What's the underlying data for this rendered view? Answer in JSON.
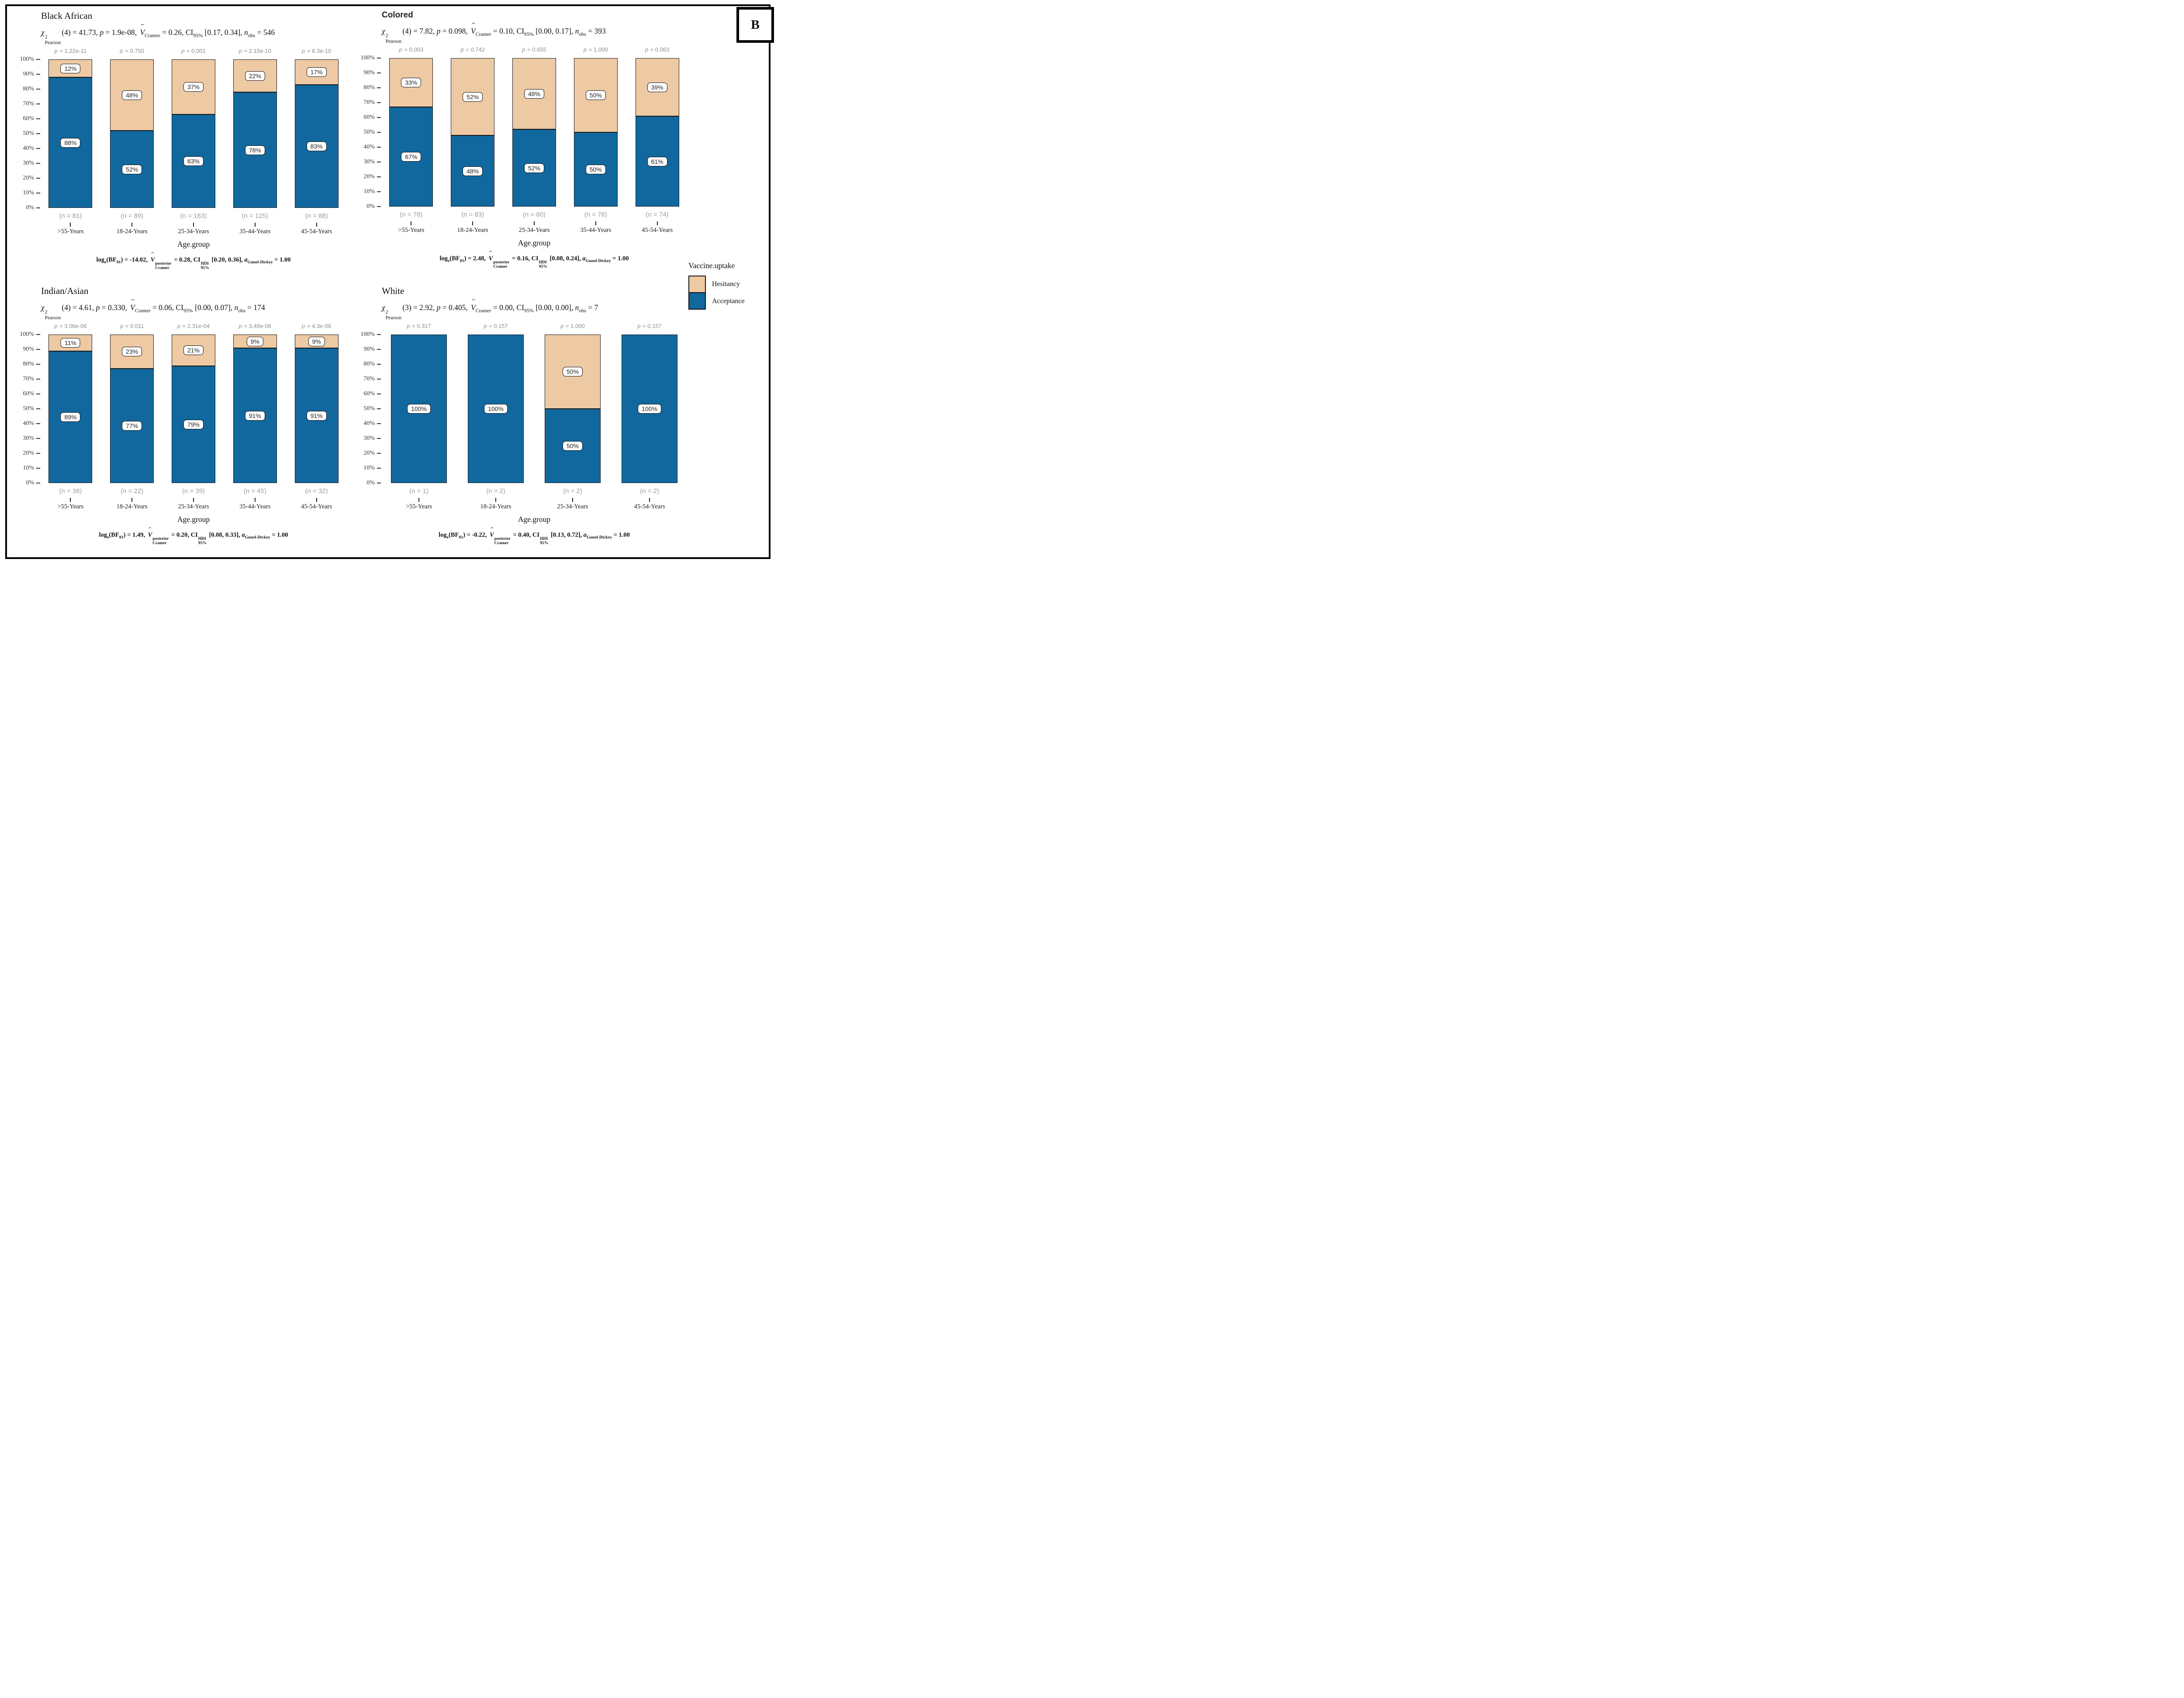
{
  "figure": {
    "panel_label": "B",
    "x_axis_title": "Age.group",
    "y_ticks": [
      "100%",
      "90%",
      "80%",
      "70%",
      "60%",
      "50%",
      "40%",
      "30%",
      "20%",
      "10%",
      "0%"
    ],
    "colors": {
      "acceptance": "#11689E",
      "hesitancy": "#EDC9A4",
      "bar_outline": "#141414",
      "muted_text": "#8d8d8d"
    },
    "legend": {
      "title": "Vaccine.uptake",
      "items": [
        {
          "label": "Hesitancy",
          "color": "#EDC9A4"
        },
        {
          "label": "Acceptance",
          "color": "#11689E"
        }
      ]
    }
  },
  "chart_data": [
    {
      "type": "bar",
      "stacked": true,
      "grid": false,
      "ylim": [
        0,
        100
      ],
      "title": "Black African",
      "title_variant": "serif",
      "subtitle": [
        {
          "t": "stack",
          "base": "χ",
          "sup": "2",
          "sub": "Pearson"
        },
        {
          "t": "text",
          "v": "(4) = 41.73, "
        },
        {
          "t": "i",
          "v": "p"
        },
        {
          "t": "text",
          "v": " = 1.9e-08, "
        },
        {
          "t": "hat",
          "v": "V"
        },
        {
          "t": "sub",
          "v": "Cramer"
        },
        {
          "t": "text",
          "v": " = 0.26, CI"
        },
        {
          "t": "sub",
          "v": "95%"
        },
        {
          "t": "text",
          "v": " [0.17, 0.34], "
        },
        {
          "t": "i",
          "v": "n"
        },
        {
          "t": "sub",
          "v": "obs"
        },
        {
          "t": "text",
          "v": " = 546"
        }
      ],
      "categories": [
        ">55-Years",
        "18-24-Years",
        "25-34-Years",
        "35-44-Years",
        "45-54-Years"
      ],
      "n": [
        81,
        89,
        163,
        125,
        88
      ],
      "p_values": [
        "1.22e-11",
        "0.750",
        "0.001",
        "2.15e-10",
        "6.3e-10"
      ],
      "series": [
        {
          "name": "Acceptance",
          "values": [
            88,
            52,
            63,
            78,
            83
          ]
        },
        {
          "name": "Hesitancy",
          "values": [
            12,
            48,
            37,
            22,
            17
          ]
        }
      ],
      "caption": [
        {
          "t": "text",
          "v": "log"
        },
        {
          "t": "sub",
          "v": "e"
        },
        {
          "t": "text",
          "v": "(BF"
        },
        {
          "t": "sub",
          "v": "01"
        },
        {
          "t": "text",
          "v": ") = -14.02, "
        },
        {
          "t": "hat",
          "v": "V"
        },
        {
          "t": "stack",
          "sup": "posterior",
          "sub": "Cramer"
        },
        {
          "t": "text",
          "v": " = 0.28, CI"
        },
        {
          "t": "stack",
          "sup": "HDI",
          "sub": "95%"
        },
        {
          "t": "text",
          "v": " [0.20, 0.36], "
        },
        {
          "t": "i",
          "v": "a"
        },
        {
          "t": "sub",
          "v": "Gunel-Dickey"
        },
        {
          "t": "text",
          "v": " = 1.00"
        }
      ]
    },
    {
      "type": "bar",
      "stacked": true,
      "grid": false,
      "ylim": [
        0,
        100
      ],
      "title": "Colored",
      "title_variant": "sans-bold",
      "subtitle": [
        {
          "t": "stack",
          "base": "χ",
          "sup": "2",
          "sub": "Pearson"
        },
        {
          "t": "text",
          "v": "(4) = 7.82, "
        },
        {
          "t": "i",
          "v": "p"
        },
        {
          "t": "text",
          "v": " = 0.098, "
        },
        {
          "t": "hat",
          "v": "V"
        },
        {
          "t": "sub",
          "v": "Cramer"
        },
        {
          "t": "text",
          "v": " = 0.10, CI"
        },
        {
          "t": "sub",
          "v": "95%"
        },
        {
          "t": "text",
          "v": " [0.00, 0.17], "
        },
        {
          "t": "i",
          "v": "n"
        },
        {
          "t": "sub",
          "v": "obs"
        },
        {
          "t": "text",
          "v": " = 393"
        }
      ],
      "categories": [
        ">55-Years",
        "18-24-Years",
        "25-34-Years",
        "35-44-Years",
        "45-54-Years"
      ],
      "n": [
        78,
        83,
        80,
        78,
        74
      ],
      "p_values": [
        "0.003",
        "0.742",
        "0.655",
        "1.000",
        "0.063"
      ],
      "series": [
        {
          "name": "Acceptance",
          "values": [
            67,
            48,
            52,
            50,
            61
          ]
        },
        {
          "name": "Hesitancy",
          "values": [
            33,
            52,
            48,
            50,
            39
          ]
        }
      ],
      "caption": [
        {
          "t": "text",
          "v": "log"
        },
        {
          "t": "sub",
          "v": "e"
        },
        {
          "t": "text",
          "v": "(BF"
        },
        {
          "t": "sub",
          "v": "01"
        },
        {
          "t": "text",
          "v": ") = 2.48, "
        },
        {
          "t": "hat",
          "v": "V"
        },
        {
          "t": "stack",
          "sup": "posterior",
          "sub": "Cramer"
        },
        {
          "t": "text",
          "v": " = 0.16, CI"
        },
        {
          "t": "stack",
          "sup": "HDI",
          "sub": "95%"
        },
        {
          "t": "text",
          "v": " [0.08, 0.24], "
        },
        {
          "t": "i",
          "v": "a"
        },
        {
          "t": "sub",
          "v": "Gunel-Dickey"
        },
        {
          "t": "text",
          "v": " = 1.00"
        }
      ]
    },
    {
      "type": "bar",
      "stacked": true,
      "grid": false,
      "ylim": [
        0,
        100
      ],
      "title": "Indian/Asian",
      "title_variant": "serif",
      "subtitle": [
        {
          "t": "stack",
          "base": "χ",
          "sup": "2",
          "sub": "Pearson"
        },
        {
          "t": "text",
          "v": "(4) = 4.61, "
        },
        {
          "t": "i",
          "v": "p"
        },
        {
          "t": "text",
          "v": " = 0.330, "
        },
        {
          "t": "hat",
          "v": "V"
        },
        {
          "t": "sub",
          "v": "Cramer"
        },
        {
          "t": "text",
          "v": " = 0.06, CI"
        },
        {
          "t": "sub",
          "v": "95%"
        },
        {
          "t": "text",
          "v": " [0.00, 0.07], "
        },
        {
          "t": "i",
          "v": "n"
        },
        {
          "t": "sub",
          "v": "obs"
        },
        {
          "t": "text",
          "v": " = 174"
        }
      ],
      "categories": [
        ">55-Years",
        "18-24-Years",
        "25-34-Years",
        "35-44-Years",
        "45-54-Years"
      ],
      "n": [
        36,
        22,
        39,
        45,
        32
      ],
      "p_values": [
        "3.06e-06",
        "0.011",
        "2.31e-04",
        "3.48e-08",
        "4.3e-06"
      ],
      "series": [
        {
          "name": "Acceptance",
          "values": [
            89,
            77,
            79,
            91,
            91
          ]
        },
        {
          "name": "Hesitancy",
          "values": [
            11,
            23,
            21,
            9,
            9
          ]
        }
      ],
      "caption": [
        {
          "t": "text",
          "v": "log"
        },
        {
          "t": "sub",
          "v": "e"
        },
        {
          "t": "text",
          "v": "(BF"
        },
        {
          "t": "sub",
          "v": "01"
        },
        {
          "t": "text",
          "v": ") = 1.49, "
        },
        {
          "t": "hat",
          "v": "V"
        },
        {
          "t": "stack",
          "sup": "posterior",
          "sub": "Cramer"
        },
        {
          "t": "text",
          "v": " = 0.20, CI"
        },
        {
          "t": "stack",
          "sup": "HDI",
          "sub": "95%"
        },
        {
          "t": "text",
          "v": " [0.08, 0.33], "
        },
        {
          "t": "i",
          "v": "a"
        },
        {
          "t": "sub",
          "v": "Gunel-Dickey"
        },
        {
          "t": "text",
          "v": " = 1.00"
        }
      ]
    },
    {
      "type": "bar",
      "stacked": true,
      "grid": false,
      "ylim": [
        0,
        100
      ],
      "title": "White",
      "title_variant": "serif",
      "subtitle": [
        {
          "t": "stack",
          "base": "χ",
          "sup": "2",
          "sub": "Pearson"
        },
        {
          "t": "text",
          "v": "(3) = 2.92, "
        },
        {
          "t": "i",
          "v": "p"
        },
        {
          "t": "text",
          "v": " = 0.405, "
        },
        {
          "t": "hat",
          "v": "V"
        },
        {
          "t": "sub",
          "v": "Cramer"
        },
        {
          "t": "text",
          "v": " = 0.00, CI"
        },
        {
          "t": "sub",
          "v": "95%"
        },
        {
          "t": "text",
          "v": " [0.00, 0.00], "
        },
        {
          "t": "i",
          "v": "n"
        },
        {
          "t": "sub",
          "v": "obs"
        },
        {
          "t": "text",
          "v": " = 7"
        }
      ],
      "categories": [
        ">55-Years",
        "18-24-Years",
        "25-34-Years",
        "45-54-Years"
      ],
      "n": [
        1,
        2,
        2,
        2
      ],
      "p_values": [
        "0.317",
        "0.157",
        "1.000",
        "0.157"
      ],
      "series": [
        {
          "name": "Acceptance",
          "values": [
            100,
            100,
            50,
            100
          ]
        },
        {
          "name": "Hesitancy",
          "values": [
            0,
            0,
            50,
            0
          ]
        }
      ],
      "caption": [
        {
          "t": "text",
          "v": "log"
        },
        {
          "t": "sub",
          "v": "e"
        },
        {
          "t": "text",
          "v": "(BF"
        },
        {
          "t": "sub",
          "v": "01"
        },
        {
          "t": "text",
          "v": ") = -0.22, "
        },
        {
          "t": "hat",
          "v": "V"
        },
        {
          "t": "stack",
          "sup": "posterior",
          "sub": "Cramer"
        },
        {
          "t": "text",
          "v": " = 0.40, CI"
        },
        {
          "t": "stack",
          "sup": "HDI",
          "sub": "95%"
        },
        {
          "t": "text",
          "v": " [0.13, 0.72], "
        },
        {
          "t": "i",
          "v": "a"
        },
        {
          "t": "sub",
          "v": "Gunel-Dickey"
        },
        {
          "t": "text",
          "v": " = 1.00"
        }
      ]
    }
  ]
}
